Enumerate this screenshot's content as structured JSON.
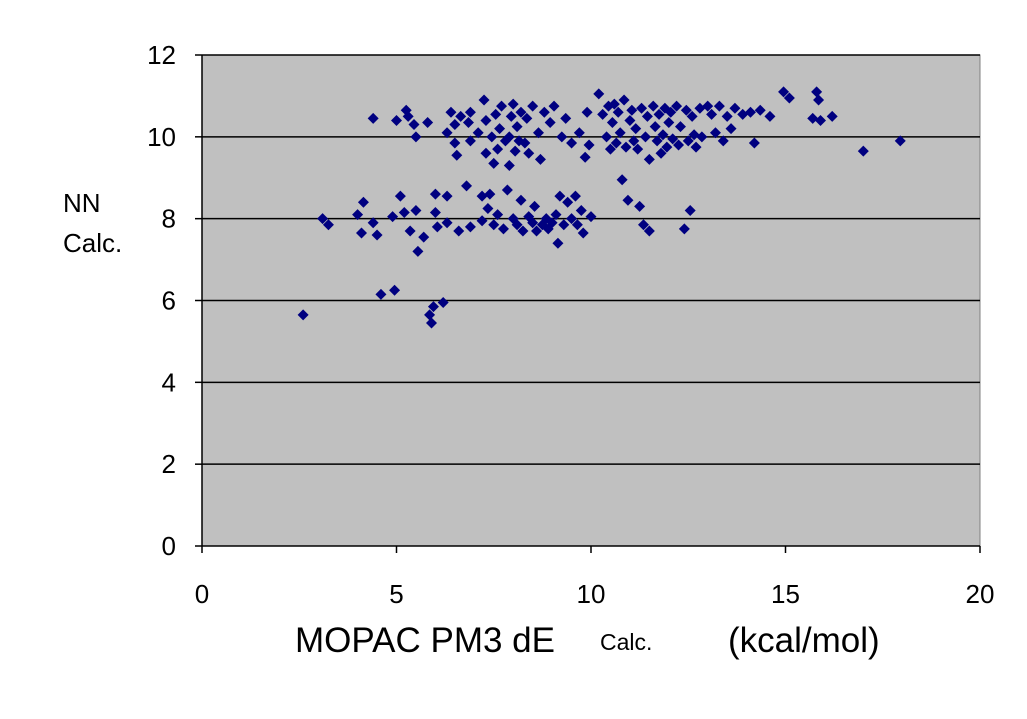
{
  "chart_data": {
    "type": "scatter",
    "xlabel_main": "MOPAC PM3 dE",
    "xlabel_sub": "Calc.",
    "xlabel_unit": "(kcal/mol)",
    "ylabel_line1": "NN",
    "ylabel_line2": "Calc.",
    "xlim": [
      0,
      20
    ],
    "ylim": [
      0,
      12
    ],
    "x_ticks": [
      0,
      5,
      10,
      15,
      20
    ],
    "y_ticks": [
      0,
      2,
      4,
      6,
      8,
      10,
      12
    ],
    "grid": "horizontal",
    "legend": "none",
    "plot_background": "#c0c0c0",
    "marker_color": "#000080",
    "marker": "diamond",
    "series": [
      {
        "points": [
          [
            2.6,
            5.65
          ],
          [
            3.1,
            8.0
          ],
          [
            3.25,
            7.85
          ],
          [
            4.0,
            8.1
          ],
          [
            4.1,
            7.65
          ],
          [
            4.15,
            8.4
          ],
          [
            4.4,
            10.45
          ],
          [
            4.4,
            7.9
          ],
          [
            4.5,
            7.6
          ],
          [
            4.6,
            6.15
          ],
          [
            4.9,
            8.05
          ],
          [
            4.95,
            6.25
          ],
          [
            5.0,
            10.4
          ],
          [
            5.1,
            8.55
          ],
          [
            5.2,
            8.15
          ],
          [
            5.25,
            10.65
          ],
          [
            5.3,
            10.5
          ],
          [
            5.35,
            7.7
          ],
          [
            5.45,
            10.3
          ],
          [
            5.5,
            10.0
          ],
          [
            5.5,
            8.2
          ],
          [
            5.55,
            7.2
          ],
          [
            5.7,
            7.55
          ],
          [
            5.8,
            10.35
          ],
          [
            5.85,
            5.65
          ],
          [
            5.9,
            5.45
          ],
          [
            5.95,
            5.85
          ],
          [
            6.0,
            8.6
          ],
          [
            6.0,
            8.15
          ],
          [
            6.05,
            7.8
          ],
          [
            6.2,
            5.95
          ],
          [
            6.3,
            8.55
          ],
          [
            6.3,
            7.9
          ],
          [
            6.3,
            10.1
          ],
          [
            6.4,
            10.6
          ],
          [
            6.5,
            9.85
          ],
          [
            6.5,
            10.3
          ],
          [
            6.55,
            9.55
          ],
          [
            6.6,
            7.7
          ],
          [
            6.65,
            10.5
          ],
          [
            6.8,
            8.8
          ],
          [
            6.85,
            10.35
          ],
          [
            6.9,
            7.8
          ],
          [
            6.9,
            10.6
          ],
          [
            6.9,
            9.9
          ],
          [
            7.1,
            10.1
          ],
          [
            7.2,
            8.55
          ],
          [
            7.2,
            7.95
          ],
          [
            7.25,
            10.9
          ],
          [
            7.3,
            9.6
          ],
          [
            7.3,
            10.4
          ],
          [
            7.35,
            8.25
          ],
          [
            7.4,
            8.6
          ],
          [
            7.45,
            10.0
          ],
          [
            7.5,
            9.35
          ],
          [
            7.5,
            7.85
          ],
          [
            7.55,
            10.55
          ],
          [
            7.6,
            9.7
          ],
          [
            7.6,
            8.1
          ],
          [
            7.65,
            10.2
          ],
          [
            7.7,
            10.75
          ],
          [
            7.75,
            7.75
          ],
          [
            7.8,
            9.9
          ],
          [
            7.85,
            8.7
          ],
          [
            7.9,
            10.0
          ],
          [
            7.9,
            9.3
          ],
          [
            7.95,
            10.5
          ],
          [
            8.0,
            8.0
          ],
          [
            8.0,
            10.8
          ],
          [
            8.05,
            9.65
          ],
          [
            8.1,
            7.85
          ],
          [
            8.1,
            10.25
          ],
          [
            8.15,
            9.9
          ],
          [
            8.2,
            8.45
          ],
          [
            8.2,
            10.6
          ],
          [
            8.25,
            7.7
          ],
          [
            8.3,
            9.85
          ],
          [
            8.35,
            10.45
          ],
          [
            8.4,
            8.05
          ],
          [
            8.4,
            9.6
          ],
          [
            8.5,
            7.9
          ],
          [
            8.5,
            10.75
          ],
          [
            8.55,
            8.3
          ],
          [
            8.6,
            7.7
          ],
          [
            8.65,
            10.1
          ],
          [
            8.7,
            9.45
          ],
          [
            8.75,
            7.85
          ],
          [
            8.8,
            10.6
          ],
          [
            8.85,
            8.0
          ],
          [
            8.9,
            7.75
          ],
          [
            8.95,
            10.35
          ],
          [
            9.0,
            7.9
          ],
          [
            9.05,
            10.75
          ],
          [
            9.1,
            8.1
          ],
          [
            9.15,
            7.4
          ],
          [
            9.2,
            8.55
          ],
          [
            9.25,
            10.0
          ],
          [
            9.3,
            7.85
          ],
          [
            9.35,
            10.45
          ],
          [
            9.4,
            8.4
          ],
          [
            9.5,
            9.85
          ],
          [
            9.5,
            8.0
          ],
          [
            9.6,
            8.55
          ],
          [
            9.65,
            7.85
          ],
          [
            9.7,
            10.1
          ],
          [
            9.75,
            8.2
          ],
          [
            9.8,
            7.65
          ],
          [
            9.85,
            9.5
          ],
          [
            9.9,
            10.6
          ],
          [
            9.95,
            9.8
          ],
          [
            10.0,
            8.05
          ],
          [
            10.2,
            11.05
          ],
          [
            10.3,
            10.55
          ],
          [
            10.4,
            10.0
          ],
          [
            10.45,
            10.75
          ],
          [
            10.5,
            9.7
          ],
          [
            10.55,
            10.35
          ],
          [
            10.6,
            10.8
          ],
          [
            10.65,
            9.85
          ],
          [
            10.7,
            10.6
          ],
          [
            10.75,
            10.1
          ],
          [
            10.8,
            8.95
          ],
          [
            10.85,
            10.9
          ],
          [
            10.9,
            9.75
          ],
          [
            10.95,
            8.45
          ],
          [
            11.0,
            10.4
          ],
          [
            11.05,
            10.65
          ],
          [
            11.1,
            9.9
          ],
          [
            11.15,
            10.2
          ],
          [
            11.2,
            9.7
          ],
          [
            11.25,
            8.3
          ],
          [
            11.3,
            10.7
          ],
          [
            11.35,
            7.85
          ],
          [
            11.4,
            10.0
          ],
          [
            11.45,
            10.5
          ],
          [
            11.5,
            7.7
          ],
          [
            11.5,
            9.45
          ],
          [
            11.6,
            10.75
          ],
          [
            11.65,
            10.25
          ],
          [
            11.7,
            9.9
          ],
          [
            11.75,
            10.55
          ],
          [
            11.8,
            9.6
          ],
          [
            11.85,
            10.05
          ],
          [
            11.9,
            10.7
          ],
          [
            11.95,
            9.75
          ],
          [
            12.0,
            10.35
          ],
          [
            12.05,
            10.6
          ],
          [
            12.1,
            9.95
          ],
          [
            12.2,
            10.75
          ],
          [
            12.25,
            9.8
          ],
          [
            12.3,
            10.25
          ],
          [
            12.4,
            7.75
          ],
          [
            12.45,
            10.65
          ],
          [
            12.5,
            9.9
          ],
          [
            12.55,
            8.2
          ],
          [
            12.6,
            10.5
          ],
          [
            12.65,
            10.05
          ],
          [
            12.7,
            9.75
          ],
          [
            12.8,
            10.7
          ],
          [
            12.85,
            10.0
          ],
          [
            13.0,
            10.75
          ],
          [
            13.1,
            10.55
          ],
          [
            13.2,
            10.1
          ],
          [
            13.3,
            10.75
          ],
          [
            13.4,
            9.9
          ],
          [
            13.5,
            10.5
          ],
          [
            13.6,
            10.2
          ],
          [
            13.7,
            10.7
          ],
          [
            13.9,
            10.55
          ],
          [
            14.1,
            10.6
          ],
          [
            14.2,
            9.85
          ],
          [
            14.35,
            10.65
          ],
          [
            14.6,
            10.5
          ],
          [
            14.95,
            11.1
          ],
          [
            15.1,
            10.95
          ],
          [
            15.7,
            10.45
          ],
          [
            15.8,
            11.1
          ],
          [
            15.85,
            10.9
          ],
          [
            15.9,
            10.4
          ],
          [
            16.2,
            10.5
          ],
          [
            17.0,
            9.65
          ],
          [
            17.95,
            9.9
          ]
        ]
      }
    ]
  }
}
